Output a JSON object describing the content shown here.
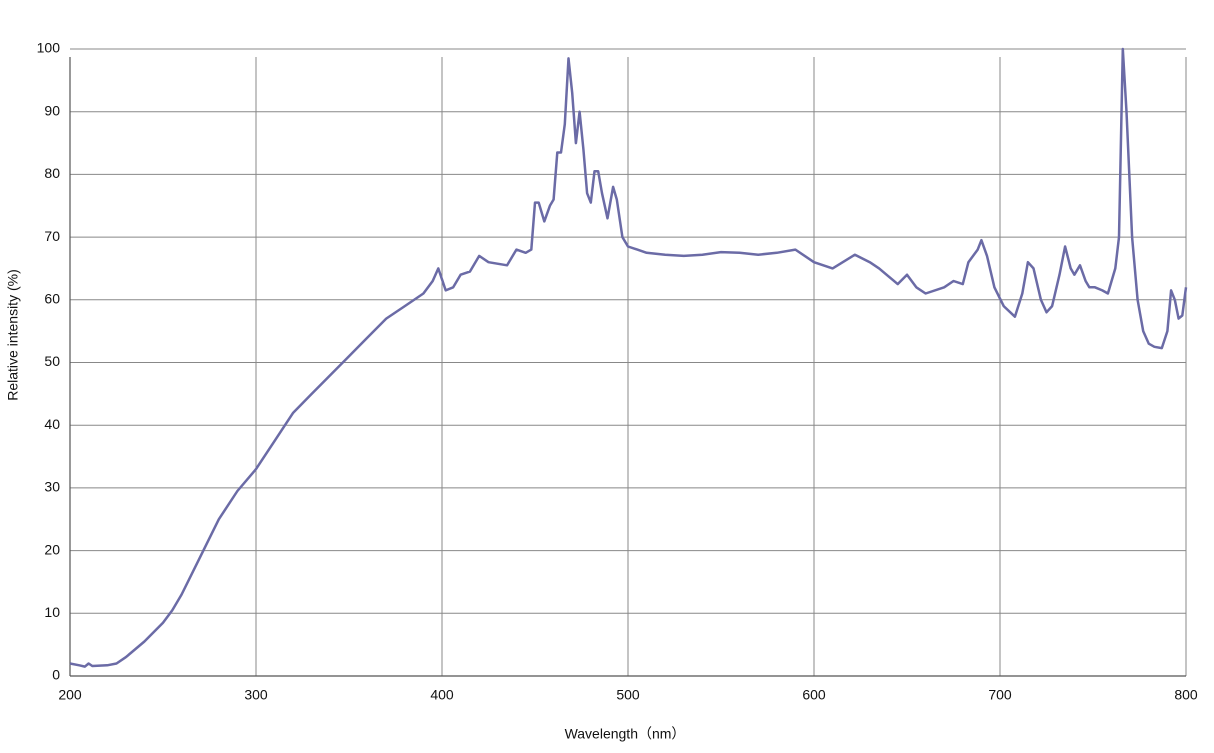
{
  "chart_data": {
    "type": "line",
    "x_label": "Wavelength（nm）",
    "y_label": "Relative intensity (%)",
    "x": [
      200,
      205,
      208,
      210,
      212,
      220,
      225,
      230,
      240,
      250,
      255,
      260,
      270,
      280,
      290,
      300,
      310,
      320,
      330,
      340,
      350,
      360,
      370,
      380,
      390,
      395,
      398,
      402,
      406,
      410,
      415,
      420,
      425,
      435,
      440,
      445,
      448,
      450,
      452,
      455,
      458,
      460,
      462,
      464,
      466,
      468,
      470,
      472,
      474,
      476,
      478,
      480,
      482,
      484,
      486,
      489,
      492,
      494,
      497,
      500,
      505,
      510,
      520,
      530,
      540,
      550,
      560,
      570,
      580,
      590,
      600,
      610,
      622,
      630,
      635,
      645,
      650,
      655,
      660,
      670,
      675,
      680,
      683,
      688,
      690,
      693,
      697,
      702,
      708,
      712,
      715,
      718,
      722,
      725,
      728,
      732,
      735,
      738,
      740,
      743,
      746,
      748,
      751,
      755,
      758,
      762,
      764,
      766,
      768,
      771,
      774,
      777,
      780,
      783,
      787,
      790,
      792,
      794,
      796,
      798,
      800
    ],
    "values": [
      2,
      1.7,
      1.5,
      2,
      1.6,
      1.7,
      2,
      3,
      5.5,
      8.5,
      10.5,
      13,
      19,
      25,
      29.5,
      33,
      37.5,
      42,
      45,
      48,
      51,
      54,
      57,
      59,
      61,
      63,
      65,
      61.5,
      62,
      64,
      64.5,
      67,
      66,
      65.5,
      68,
      67.5,
      68,
      75.5,
      75.5,
      72.5,
      75,
      76,
      83.5,
      83.5,
      88,
      98.5,
      93,
      85,
      90,
      84,
      77,
      75.5,
      80.5,
      80.5,
      77,
      73,
      78,
      76,
      70,
      68.5,
      68,
      67.5,
      67.2,
      67,
      67.2,
      67.6,
      67.5,
      67.2,
      67.5,
      68,
      66,
      65,
      67.2,
      66,
      65,
      62.5,
      64,
      62,
      61,
      62,
      63,
      62.5,
      66,
      68,
      69.5,
      67,
      62,
      59,
      57.3,
      61,
      66,
      65,
      60,
      58,
      59,
      64,
      68.5,
      65,
      64,
      65.5,
      63,
      62,
      62,
      61.5,
      61,
      65,
      70,
      100,
      90,
      70,
      60,
      55,
      53,
      52.5,
      52.3,
      55,
      61.5,
      60,
      57,
      57.5,
      62
    ],
    "color": "#6b6ba6",
    "xlim": [
      200,
      800
    ],
    "xticks": [
      200,
      300,
      400,
      500,
      600,
      700,
      800
    ],
    "ylim": [
      0,
      100
    ],
    "yticks": [
      0,
      10,
      20,
      30,
      40,
      50,
      60,
      70,
      80,
      90,
      100
    ],
    "grid": true
  }
}
